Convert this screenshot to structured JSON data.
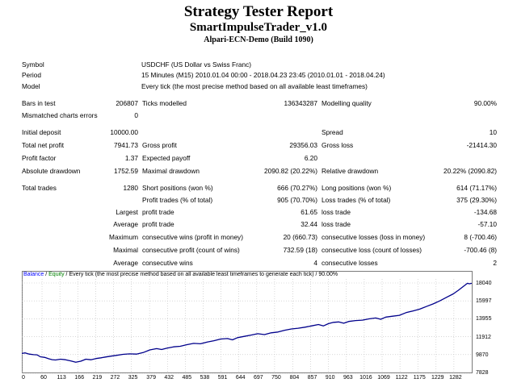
{
  "report": {
    "title": "Strategy Tester Report",
    "expert": "SmartImpulseTrader_v1.0",
    "server": "Alpari-ECN-Demo (Build 1090)"
  },
  "rows": [
    {
      "y": 74,
      "cells": [
        {
          "k": "l",
          "t": "Symbol"
        },
        {
          "k": "m",
          "t": "USDCHF (US Dollar vs Swiss Franc)"
        }
      ]
    },
    {
      "y": 87,
      "cells": [
        {
          "k": "l",
          "t": "Period"
        },
        {
          "k": "m",
          "t": "15 Minutes (M15) 2010.01.04 00:00 - 2018.04.23 23:45 (2010.01.01 - 2018.04.24)"
        }
      ]
    },
    {
      "y": 101,
      "cells": [
        {
          "k": "l",
          "t": "Model"
        },
        {
          "k": "m",
          "t": "Every tick (the most precise method based on all available least timeframes)"
        }
      ]
    },
    {
      "y": 122,
      "cells": [
        {
          "k": "l",
          "t": "Bars in test"
        },
        {
          "k": "v1",
          "t": "206807"
        },
        {
          "k": "n1",
          "t": "Ticks modelled"
        },
        {
          "k": "v2",
          "t": "136343287"
        },
        {
          "k": "n2",
          "t": "Modelling quality"
        },
        {
          "k": "v3",
          "t": "90.00%"
        }
      ]
    },
    {
      "y": 137,
      "cells": [
        {
          "k": "l",
          "t": "Mismatched charts errors"
        },
        {
          "k": "v1",
          "t": "0"
        }
      ]
    },
    {
      "y": 158,
      "cells": [
        {
          "k": "l",
          "t": "Initial deposit"
        },
        {
          "k": "v1",
          "t": "10000.00"
        },
        {
          "k": "n2",
          "t": "Spread"
        },
        {
          "k": "v3",
          "t": "10"
        }
      ]
    },
    {
      "y": 174,
      "cells": [
        {
          "k": "l",
          "t": "Total net profit"
        },
        {
          "k": "v1",
          "t": "7941.73"
        },
        {
          "k": "n1",
          "t": "Gross profit"
        },
        {
          "k": "v2",
          "t": "29356.03"
        },
        {
          "k": "n2",
          "t": "Gross loss"
        },
        {
          "k": "v3",
          "t": "-21414.30"
        }
      ]
    },
    {
      "y": 190,
      "cells": [
        {
          "k": "l",
          "t": "Profit factor"
        },
        {
          "k": "v1",
          "t": "1.37"
        },
        {
          "k": "n1",
          "t": "Expected payoff"
        },
        {
          "k": "v2",
          "t": "6.20"
        }
      ]
    },
    {
      "y": 206,
      "cells": [
        {
          "k": "l",
          "t": "Absolute drawdown"
        },
        {
          "k": "v1",
          "t": "1752.59"
        },
        {
          "k": "n1",
          "t": "Maximal drawdown"
        },
        {
          "k": "v2",
          "t": "2090.82 (20.22%)"
        },
        {
          "k": "n2",
          "t": "Relative drawdown"
        },
        {
          "k": "v3",
          "t": "20.22% (2090.82)"
        }
      ]
    },
    {
      "y": 227,
      "cells": [
        {
          "k": "l",
          "t": "Total trades"
        },
        {
          "k": "v1",
          "t": "1280"
        },
        {
          "k": "n1",
          "t": "Short positions (won %)"
        },
        {
          "k": "v2",
          "t": "666 (70.27%)"
        },
        {
          "k": "n2",
          "t": "Long positions (won %)"
        },
        {
          "k": "v3",
          "t": "614 (71.17%)"
        }
      ]
    },
    {
      "y": 242,
      "cells": [
        {
          "k": "n1",
          "t": "Profit trades (% of total)"
        },
        {
          "k": "v2",
          "t": "905 (70.70%)"
        },
        {
          "k": "n2",
          "t": "Loss trades (% of total)"
        },
        {
          "k": "v3",
          "t": "375 (29.30%)"
        }
      ]
    },
    {
      "y": 257,
      "cells": [
        {
          "k": "v1",
          "t": "Largest"
        },
        {
          "k": "n1",
          "t": "profit trade"
        },
        {
          "k": "v2",
          "t": "61.65"
        },
        {
          "k": "n2",
          "t": "loss trade"
        },
        {
          "k": "v3",
          "t": "-134.68"
        }
      ]
    },
    {
      "y": 272,
      "cells": [
        {
          "k": "v1",
          "t": "Average"
        },
        {
          "k": "n1",
          "t": "profit trade"
        },
        {
          "k": "v2",
          "t": "32.44"
        },
        {
          "k": "n2",
          "t": "loss trade"
        },
        {
          "k": "v3",
          "t": "-57.10"
        }
      ]
    },
    {
      "y": 288,
      "cells": [
        {
          "k": "v1",
          "t": "Maximum"
        },
        {
          "k": "n1",
          "t": "consecutive wins (profit in money)"
        },
        {
          "k": "v2",
          "t": "20 (660.73)"
        },
        {
          "k": "n2",
          "t": "consecutive losses (loss in money)"
        },
        {
          "k": "v3",
          "t": "8 (-700.46)"
        }
      ]
    },
    {
      "y": 304,
      "cells": [
        {
          "k": "v1",
          "t": "Maximal"
        },
        {
          "k": "n1",
          "t": "consecutive profit (count of wins)"
        },
        {
          "k": "v2",
          "t": "732.59 (18)"
        },
        {
          "k": "n2",
          "t": "consecutive loss (count of losses)"
        },
        {
          "k": "v3",
          "t": "-700.46 (8)"
        }
      ]
    },
    {
      "y": 320,
      "cells": [
        {
          "k": "v1",
          "t": "Average"
        },
        {
          "k": "n1",
          "t": "consecutive wins"
        },
        {
          "k": "v2",
          "t": "4"
        },
        {
          "k": "n2",
          "t": "consecutive losses"
        },
        {
          "k": "v3",
          "t": "2"
        }
      ]
    }
  ],
  "chart_caption": {
    "balance": "Balance",
    "sep1": " / ",
    "equity": "Equity",
    "rest": " / Every tick (the most precise method based on all available least timeframes to generate each tick) / 90.00%"
  },
  "colors": {
    "balance": "#0000ff",
    "equity": "#008000",
    "line": "#00008b",
    "grid": "#bfbfbf"
  },
  "chart_data": {
    "type": "line",
    "xlabel": "",
    "ylabel": "",
    "grid": true,
    "xlim": [
      0,
      1335
    ],
    "ylim": [
      7828,
      18500
    ],
    "x_ticks": [
      0,
      60,
      113,
      166,
      219,
      272,
      325,
      379,
      432,
      485,
      538,
      591,
      644,
      697,
      750,
      804,
      857,
      910,
      963,
      1016,
      1069,
      1122,
      1175,
      1229,
      1282
    ],
    "y_ticks": [
      7828,
      9870,
      11912,
      13955,
      15997,
      18040
    ],
    "series": [
      {
        "values": [
          [
            0,
            10000
          ],
          [
            10,
            10060
          ],
          [
            22,
            9930
          ],
          [
            35,
            9860
          ],
          [
            45,
            9840
          ],
          [
            55,
            9620
          ],
          [
            68,
            9550
          ],
          [
            80,
            9390
          ],
          [
            90,
            9290
          ],
          [
            100,
            9250
          ],
          [
            115,
            9350
          ],
          [
            130,
            9280
          ],
          [
            145,
            9150
          ],
          [
            160,
            9000
          ],
          [
            175,
            9120
          ],
          [
            190,
            9350
          ],
          [
            205,
            9280
          ],
          [
            220,
            9420
          ],
          [
            235,
            9500
          ],
          [
            250,
            9600
          ],
          [
            265,
            9700
          ],
          [
            280,
            9780
          ],
          [
            300,
            9900
          ],
          [
            320,
            9950
          ],
          [
            340,
            9930
          ],
          [
            360,
            10100
          ],
          [
            380,
            10400
          ],
          [
            400,
            10550
          ],
          [
            415,
            10450
          ],
          [
            430,
            10600
          ],
          [
            450,
            10750
          ],
          [
            470,
            10820
          ],
          [
            490,
            11000
          ],
          [
            510,
            11150
          ],
          [
            530,
            11100
          ],
          [
            550,
            11300
          ],
          [
            570,
            11450
          ],
          [
            590,
            11650
          ],
          [
            610,
            11700
          ],
          [
            625,
            11550
          ],
          [
            640,
            11800
          ],
          [
            660,
            11950
          ],
          [
            680,
            12100
          ],
          [
            700,
            12250
          ],
          [
            720,
            12150
          ],
          [
            740,
            12350
          ],
          [
            760,
            12450
          ],
          [
            780,
            12650
          ],
          [
            800,
            12800
          ],
          [
            820,
            12880
          ],
          [
            840,
            13000
          ],
          [
            860,
            13150
          ],
          [
            880,
            13300
          ],
          [
            895,
            13150
          ],
          [
            910,
            13400
          ],
          [
            925,
            13550
          ],
          [
            940,
            13600
          ],
          [
            955,
            13450
          ],
          [
            970,
            13650
          ],
          [
            990,
            13750
          ],
          [
            1010,
            13800
          ],
          [
            1030,
            13950
          ],
          [
            1050,
            14050
          ],
          [
            1065,
            13900
          ],
          [
            1080,
            14150
          ],
          [
            1100,
            14250
          ],
          [
            1120,
            14350
          ],
          [
            1140,
            14650
          ],
          [
            1160,
            14850
          ],
          [
            1180,
            15050
          ],
          [
            1200,
            15350
          ],
          [
            1220,
            15650
          ],
          [
            1240,
            16000
          ],
          [
            1260,
            16400
          ],
          [
            1280,
            16800
          ],
          [
            1295,
            17200
          ],
          [
            1305,
            17500
          ],
          [
            1315,
            17800
          ],
          [
            1322,
            18000
          ],
          [
            1328,
            17950
          ],
          [
            1335,
            18000
          ]
        ]
      }
    ]
  }
}
